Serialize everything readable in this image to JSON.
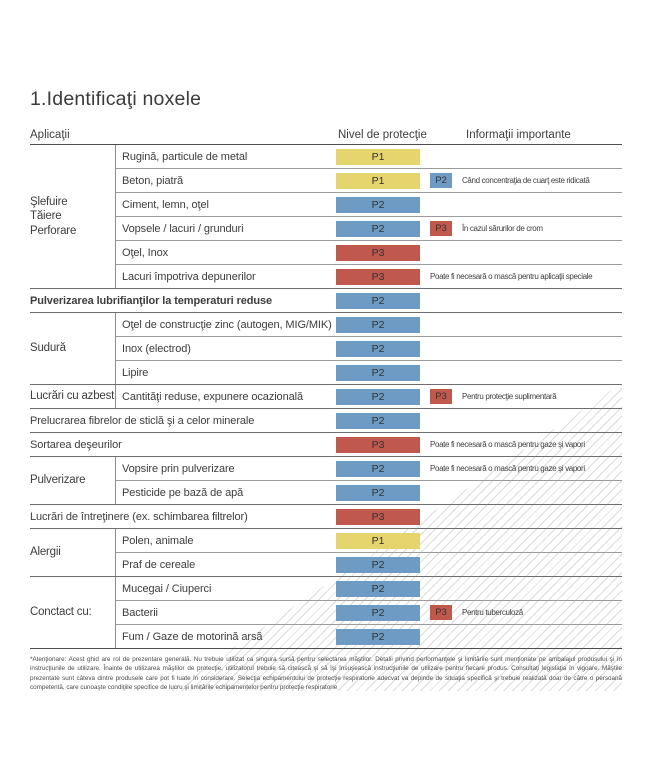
{
  "title": "1.Identificaţi noxele",
  "colors": {
    "p1_yellow": "#e6d46d",
    "p2_blue": "#6d9bc4",
    "p3_red": "#c1584d"
  },
  "header": {
    "applications": "Aplicaţii",
    "protection": "Nivel de protecţie",
    "info": "Informaţii importante"
  },
  "sections": [
    {
      "group": "Şlefuire\nTăiere\nPerforare",
      "rows": [
        {
          "label": "Rugină, particule de metal",
          "level": "P1"
        },
        {
          "label": "Beton, piatră",
          "level": "P1",
          "badge": "P2",
          "info": "Când concentraţia de cuarţ este ridicată"
        },
        {
          "label": "Ciment, lemn, oţel",
          "level": "P2"
        },
        {
          "label": "Vopsele / lacuri / grunduri",
          "level": "P2",
          "badge": "P3",
          "info": "În cazul sărurilor de crom"
        },
        {
          "label": "Oţel, Inox",
          "level": "P3"
        },
        {
          "label": "Lacuri împotriva depunerilor",
          "level": "P3",
          "info": "Poate fi necesară o mască pentru aplicaţii speciale"
        }
      ]
    },
    {
      "group": null,
      "rows": [
        {
          "label": "Pulverizarea lubrifianţilor la temperaturi reduse",
          "level": "P2"
        }
      ]
    },
    {
      "group": "Sudură",
      "rows": [
        {
          "label": "Oţel de construcţie zinc (autogen, MIG/MIK)",
          "level": "P2"
        },
        {
          "label": "Inox (electrod)",
          "level": "P2"
        },
        {
          "label": "Lipire",
          "level": "P2"
        }
      ]
    },
    {
      "group": "Lucrări cu azbest",
      "rows": [
        {
          "label": "Cantităţi reduse, expunere ocazională",
          "level": "P2",
          "badge": "P3",
          "info": "Pentru protecţie suplimentară"
        }
      ]
    },
    {
      "group": null,
      "rows": [
        {
          "label": "Prelucrarea fibrelor de sticlă şi a celor minerale",
          "level": "P2"
        }
      ]
    },
    {
      "group": null,
      "rows": [
        {
          "label": "Sortarea deşeurilor",
          "level": "P3",
          "info": "Poate fi necesară o mască pentru gaze şi vapori"
        }
      ]
    },
    {
      "group": "Pulverizare",
      "rows": [
        {
          "label": "Vopsire prin pulverizare",
          "level": "P2",
          "info": "Poate fi necesară o mască pentru gaze şi vapori"
        },
        {
          "label": "Pesticide pe bază de apă",
          "level": "P2"
        }
      ]
    },
    {
      "group": null,
      "rows": [
        {
          "label": "Lucrări de întreţinere (ex. schimbarea filtrelor)",
          "level": "P3"
        }
      ]
    },
    {
      "group": "Alergii",
      "rows": [
        {
          "label": "Polen, animale",
          "level": "P1"
        },
        {
          "label": "Praf de cereale",
          "level": "P2"
        }
      ]
    },
    {
      "group": "Conctact cu:",
      "rows": [
        {
          "label": "Mucegai / Ciuperci",
          "level": "P2"
        },
        {
          "label": "Bacterii",
          "level": "P2",
          "badge": "P3",
          "info": "Pentru tuberculoză"
        },
        {
          "label": "Fum / Gaze de motorină arsă",
          "level": "P2"
        }
      ]
    }
  ],
  "footnote": "*Atenţionare: Acest ghid are rol de prezentare generală. Nu trebuie utilizat ca singura sursă pentru selectarea măştilor. Detalii privind performanţele şi limitările sunt menţionate pe ambalajul produsului şi în instrucţiunile de utilizare. Înainte de utilizarea măştilor de protecţie, utilizatorul trebuie să citească şi să îşi însuşească instrucţiunile de utilizare pentru fiecare produs. Consultaţi legislaţia în vigoare. Măştile prezentate sunt câteva dintre produsele care pot fi luate în considerare. Selecţia echipamentului de protecţie respiratorie adecvat va depinde de situaţia specifică şi trebuie realizată doar de către o persoană competentă, care cunoaşte condiţiile specifice de lucru şi limitările echipamentelor pentru protecţie respiratorie"
}
